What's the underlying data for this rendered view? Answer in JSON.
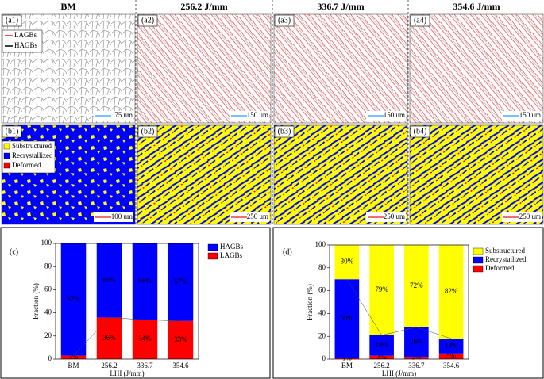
{
  "columns": [
    "BM",
    "256.2 J/mm",
    "336.7 J/mm",
    "354.6 J/mm"
  ],
  "panels_a": [
    {
      "label": "(a1)",
      "scale": "75 um"
    },
    {
      "label": "(a2)",
      "scale": "150 um"
    },
    {
      "label": "(a3)",
      "scale": "150 um"
    },
    {
      "label": "(a4)",
      "scale": "150 um"
    }
  ],
  "panels_b": [
    {
      "label": "(b1)",
      "scale": "100 um"
    },
    {
      "label": "(b2)",
      "scale": "250 um"
    },
    {
      "label": "(b3)",
      "scale": "250 um"
    },
    {
      "label": "(b4)",
      "scale": "250 um"
    }
  ],
  "legend_a": [
    {
      "name": "LAGBs",
      "color": "#e41a1c"
    },
    {
      "name": "HAGBs",
      "color": "#000000"
    }
  ],
  "legend_b": [
    {
      "name": "Substructured",
      "color": "#ffff00"
    },
    {
      "name": "Recrystallized",
      "color": "#0000ff"
    },
    {
      "name": "Deformed",
      "color": "#ff0000"
    }
  ],
  "chart_data": [
    {
      "type": "stacked_bar",
      "panel": "(c)",
      "x_label": "LHI (J/mm)",
      "y_label": "Fraction (%)",
      "categories": [
        "BM",
        "256.2",
        "336.7",
        "354.6"
      ],
      "series": [
        {
          "name": "LAGBs",
          "color": "#ff0000",
          "values": [
            3,
            36,
            34,
            33
          ],
          "value_labels": [
            "3%",
            "36%",
            "34%",
            "33%"
          ]
        },
        {
          "name": "HAGBs",
          "color": "#0000ff",
          "values": [
            97,
            64,
            66,
            67
          ],
          "value_labels": [
            "97%",
            "64%",
            "66%",
            "67%"
          ]
        }
      ],
      "ylim": [
        0,
        100
      ],
      "yticks": [
        0,
        20,
        40,
        60,
        80,
        100
      ],
      "legend": "right"
    },
    {
      "type": "stacked_bar",
      "panel": "(d)",
      "x_label": "LHI (J/mm)",
      "y_label": "Fraction (%)",
      "categories": [
        "BM",
        "256.2",
        "336.7",
        "354.6"
      ],
      "series": [
        {
          "name": "Deformed",
          "color": "#ff0000",
          "values": [
            1,
            3,
            2,
            5
          ],
          "value_labels": [
            "1%",
            "3%",
            "2%",
            "5%"
          ]
        },
        {
          "name": "Recrystallized",
          "color": "#0000ff",
          "values": [
            69,
            18,
            26,
            13
          ],
          "value_labels": [
            "69%",
            "18%",
            "26%",
            "13%"
          ]
        },
        {
          "name": "Substructured",
          "color": "#ffff00",
          "values": [
            30,
            79,
            72,
            82
          ],
          "value_labels": [
            "30%",
            "79%",
            "72%",
            "82%"
          ]
        }
      ],
      "ylim": [
        0,
        100
      ],
      "yticks": [
        0,
        20,
        40,
        60,
        80,
        100
      ],
      "legend": "right"
    }
  ]
}
